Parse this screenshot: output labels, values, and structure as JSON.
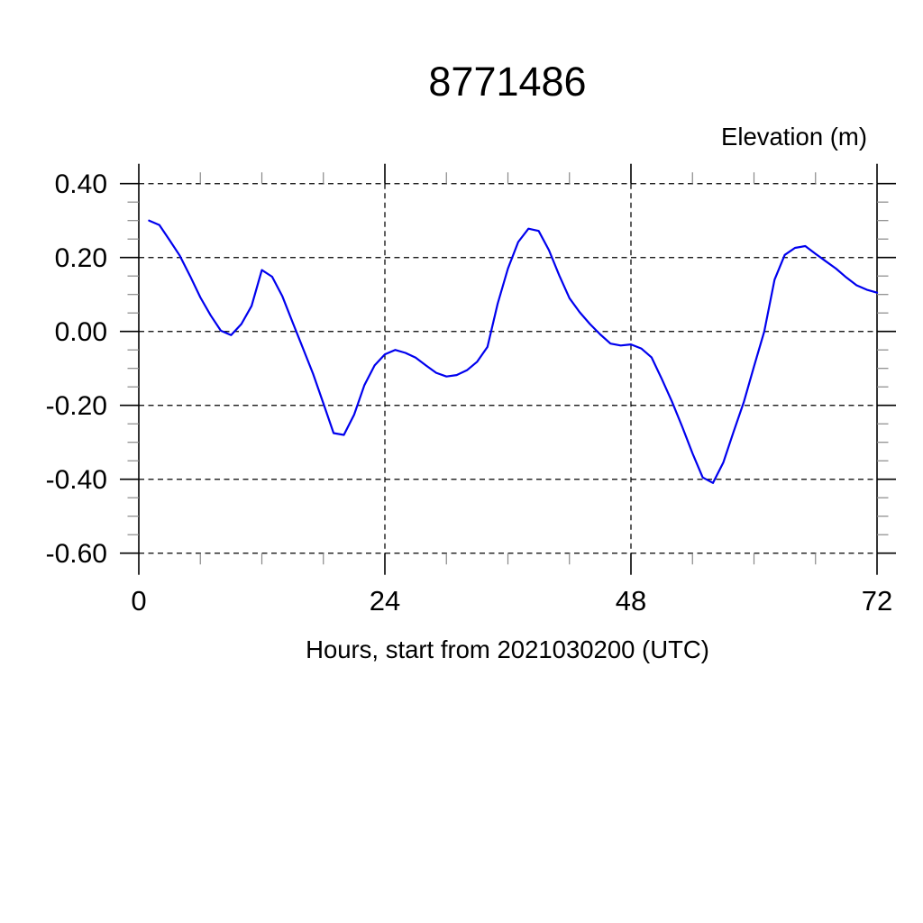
{
  "chart_data": {
    "type": "line",
    "title": "8771486",
    "ylabel": "Elevation (m)",
    "xlabel": "Hours, start from 2021030200 (UTC)",
    "xlim": [
      0,
      72
    ],
    "ylim": [
      -0.6,
      0.4
    ],
    "x_major_ticks": [
      0,
      24,
      48,
      72
    ],
    "x_tick_labels": [
      "0",
      "24",
      "48",
      "72"
    ],
    "x_minor_step": 6,
    "grid_hours": [
      24,
      48
    ],
    "y_major_ticks": [
      0.4,
      0.2,
      0.0,
      -0.2,
      -0.4,
      -0.6
    ],
    "y_tick_labels": [
      "0.40",
      "0.20",
      "0.00",
      "-0.20",
      "-0.40",
      "-0.60"
    ],
    "y_minor_step": 0.05,
    "grid_style": "dashed",
    "legend": "none",
    "colors": {
      "line": "#0000ee",
      "grid": "#000000",
      "axis": "#000000",
      "minor_tick": "#888888",
      "text": "#000000",
      "background": "#ffffff"
    },
    "series": [
      {
        "name": "elevation",
        "x": [
          1,
          2,
          3,
          4,
          5,
          6,
          7,
          8,
          9,
          10,
          11,
          12,
          13,
          14,
          15,
          16,
          17,
          18,
          19,
          20,
          21,
          22,
          23,
          24,
          25,
          26,
          27,
          28,
          29,
          30,
          31,
          32,
          33,
          34,
          35,
          36,
          37,
          38,
          39,
          40,
          41,
          42,
          43,
          44,
          45,
          46,
          47,
          48,
          49,
          50,
          51,
          52,
          53,
          54,
          55,
          56,
          57,
          58,
          59,
          60,
          61,
          62,
          63,
          64,
          65,
          66,
          67,
          68,
          69,
          70,
          71,
          72
        ],
        "y": [
          0.3,
          0.288,
          0.247,
          0.205,
          0.15,
          0.092,
          0.044,
          0.002,
          -0.01,
          0.02,
          0.069,
          0.166,
          0.148,
          0.095,
          0.025,
          -0.045,
          -0.115,
          -0.195,
          -0.275,
          -0.28,
          -0.225,
          -0.145,
          -0.092,
          -0.062,
          -0.05,
          -0.058,
          -0.071,
          -0.092,
          -0.112,
          -0.122,
          -0.118,
          -0.105,
          -0.082,
          -0.042,
          0.075,
          0.17,
          0.242,
          0.278,
          0.272,
          0.22,
          0.152,
          0.09,
          0.052,
          0.02,
          -0.008,
          -0.033,
          -0.038,
          -0.035,
          -0.046,
          -0.07,
          -0.128,
          -0.19,
          -0.258,
          -0.33,
          -0.395,
          -0.41,
          -0.355,
          -0.272,
          -0.192,
          -0.095,
          0.0,
          0.14,
          0.207,
          0.226,
          0.231,
          0.21,
          0.19,
          0.17,
          0.146,
          0.125,
          0.113,
          0.105
        ]
      }
    ]
  }
}
